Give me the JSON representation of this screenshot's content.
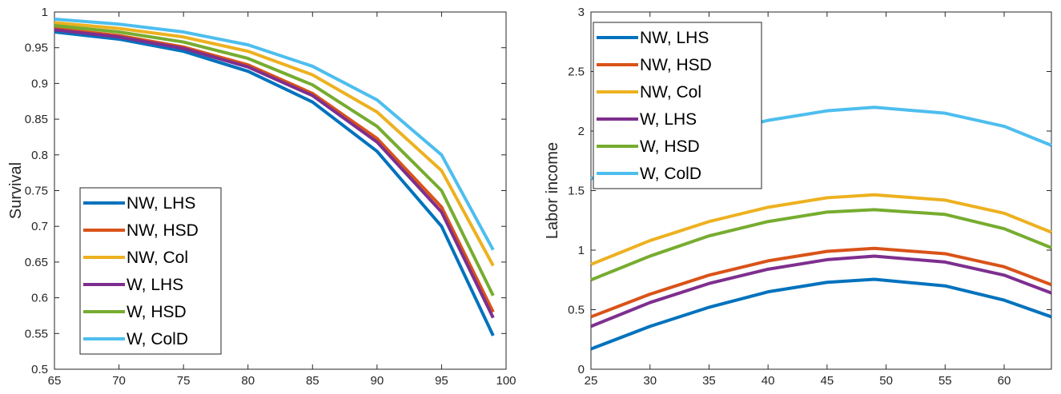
{
  "chart_data": [
    {
      "type": "line",
      "ylabel": "Survival",
      "x": [
        65,
        70,
        75,
        80,
        85,
        90,
        95,
        99
      ],
      "xlim": [
        65,
        100
      ],
      "ylim": [
        0.5,
        1
      ],
      "xticks": [
        65,
        70,
        75,
        80,
        85,
        90,
        95,
        100
      ],
      "yticks": [
        0.5,
        0.55,
        0.6,
        0.65,
        0.7,
        0.75,
        0.8,
        0.85,
        0.9,
        0.95,
        1
      ],
      "legend": "lower left",
      "series": [
        {
          "name": "NW, LHS",
          "color": "#0072BD",
          "values": [
            0.972,
            0.962,
            0.945,
            0.917,
            0.874,
            0.805,
            0.7,
            0.547
          ]
        },
        {
          "name": "NW, HSD",
          "color": "#D95319",
          "values": [
            0.977,
            0.967,
            0.951,
            0.926,
            0.886,
            0.823,
            0.727,
            0.58
          ]
        },
        {
          "name": "NW, Col",
          "color": "#EDB120",
          "values": [
            0.985,
            0.977,
            0.965,
            0.945,
            0.912,
            0.86,
            0.778,
            0.645
          ]
        },
        {
          "name": "W, LHS",
          "color": "#7E2F8E",
          "values": [
            0.975,
            0.965,
            0.949,
            0.923,
            0.883,
            0.818,
            0.72,
            0.572
          ]
        },
        {
          "name": "W, HSD",
          "color": "#77AC30",
          "values": [
            0.981,
            0.972,
            0.958,
            0.935,
            0.898,
            0.84,
            0.75,
            0.603
          ]
        },
        {
          "name": "W, ColD",
          "color": "#4DBEEE",
          "values": [
            0.99,
            0.983,
            0.972,
            0.954,
            0.924,
            0.877,
            0.8,
            0.667
          ]
        }
      ]
    },
    {
      "type": "line",
      "ylabel": "Labor income",
      "x": [
        25,
        30,
        35,
        40,
        45,
        49,
        55,
        60,
        64
      ],
      "xlim": [
        25,
        64
      ],
      "ylim": [
        0,
        3
      ],
      "xticks": [
        25,
        30,
        35,
        40,
        45,
        50,
        55,
        60
      ],
      "yticks": [
        0,
        0.5,
        1,
        1.5,
        2,
        2.5,
        3
      ],
      "legend": "upper left",
      "series": [
        {
          "name": "NW, LHS",
          "color": "#0072BD",
          "values": [
            0.17,
            0.36,
            0.52,
            0.65,
            0.73,
            0.755,
            0.7,
            0.58,
            0.44
          ]
        },
        {
          "name": "NW, HSD",
          "color": "#D95319",
          "values": [
            0.44,
            0.63,
            0.79,
            0.91,
            0.99,
            1.015,
            0.97,
            0.86,
            0.71
          ]
        },
        {
          "name": "NW, Col",
          "color": "#EDB120",
          "values": [
            0.88,
            1.08,
            1.24,
            1.36,
            1.44,
            1.465,
            1.42,
            1.31,
            1.15
          ]
        },
        {
          "name": "W, LHS",
          "color": "#7E2F8E",
          "values": [
            0.36,
            0.56,
            0.72,
            0.84,
            0.92,
            0.95,
            0.9,
            0.79,
            0.64
          ]
        },
        {
          "name": "W, HSD",
          "color": "#77AC30",
          "values": [
            0.75,
            0.95,
            1.12,
            1.24,
            1.32,
            1.34,
            1.3,
            1.18,
            1.02
          ]
        },
        {
          "name": "W, ColD",
          "color": "#4DBEEE",
          "values": [
            1.6,
            1.8,
            1.97,
            2.09,
            2.17,
            2.2,
            2.15,
            2.04,
            1.88
          ]
        }
      ]
    }
  ]
}
